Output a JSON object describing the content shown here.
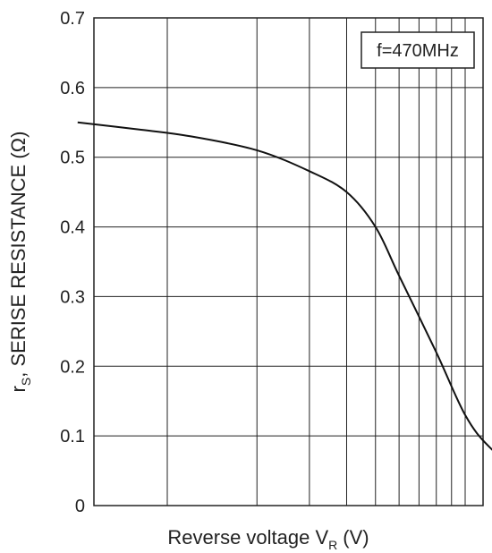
{
  "chart_data": {
    "type": "line",
    "xscale": "log",
    "x": [
      0.5,
      0.8,
      1.2,
      2,
      3,
      4,
      5,
      6,
      8,
      10,
      12,
      15,
      20,
      25
    ],
    "series": [
      {
        "values": [
          0.55,
          0.54,
          0.53,
          0.51,
          0.48,
          0.45,
          0.4,
          0.33,
          0.22,
          0.13,
          0.085,
          0.055,
          0.045,
          0.045
        ]
      }
    ],
    "xlabel": {
      "main": "Reverse voltage V",
      "sub": "R",
      "unit": "(V)"
    },
    "ylabel": {
      "main": "r",
      "sub": "S",
      "rest": ", SERISE RESISTANCE (Ω)"
    },
    "ylim": [
      0,
      0.7
    ],
    "yticks": [
      "0",
      "0.1",
      "0.2",
      "0.3",
      "0.4",
      "0.5",
      "0.6",
      "0.7"
    ],
    "grid": true,
    "annotation": "f=470MHz",
    "colors": {
      "line": "#111111",
      "grid": "#222222",
      "frame": "#222222"
    }
  }
}
